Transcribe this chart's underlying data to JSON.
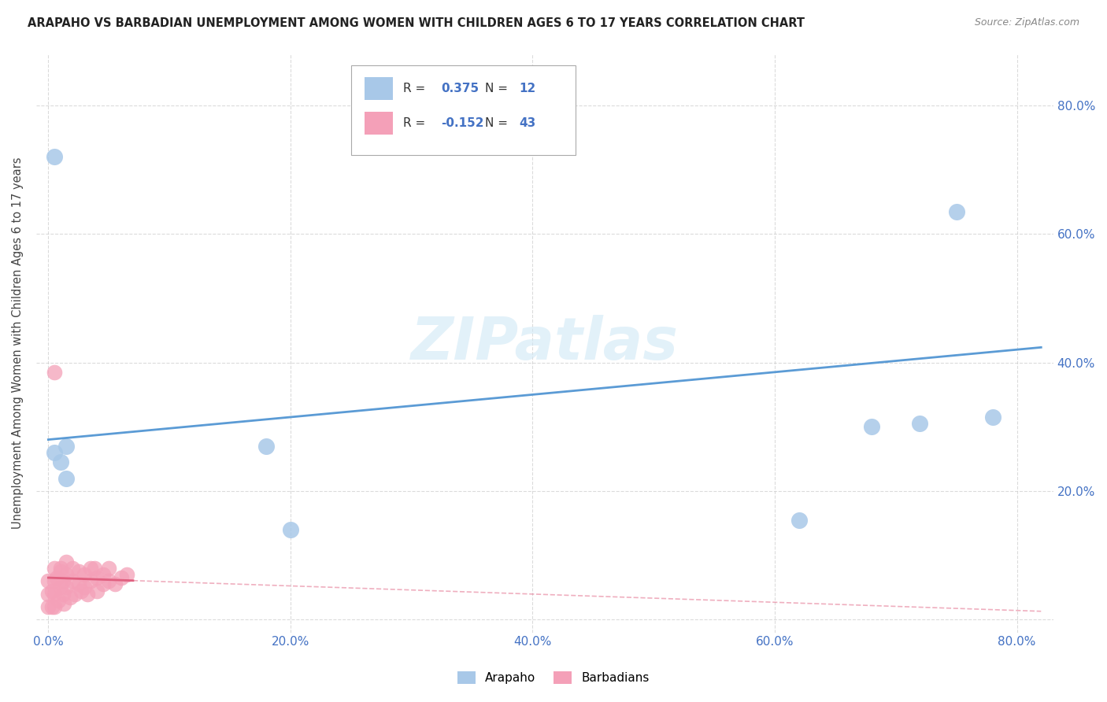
{
  "title": "ARAPAHO VS BARBADIAN UNEMPLOYMENT AMONG WOMEN WITH CHILDREN AGES 6 TO 17 YEARS CORRELATION CHART",
  "source": "Source: ZipAtlas.com",
  "ylabel": "Unemployment Among Women with Children Ages 6 to 17 years",
  "arapaho_R": 0.375,
  "arapaho_N": 12,
  "barbadian_R": -0.152,
  "barbadian_N": 43,
  "arapaho_color": "#a8c8e8",
  "barbadian_color": "#f4a0b8",
  "arapaho_line_color": "#5b9bd5",
  "barbadian_line_color": "#e06080",
  "watermark_color": "#d0e8f5",
  "background_color": "#ffffff",
  "grid_color": "#cccccc",
  "tick_color": "#4472c4",
  "arapaho_x": [
    0.5,
    0.5,
    1.0,
    1.5,
    1.5,
    18.0,
    62.0,
    68.0,
    72.0,
    75.0,
    78.0,
    20.0
  ],
  "arapaho_y": [
    72.0,
    26.0,
    24.5,
    27.0,
    22.0,
    27.0,
    15.5,
    30.0,
    30.5,
    63.5,
    31.5,
    14.0
  ],
  "barbadian_x": [
    0.0,
    0.0,
    0.0,
    0.5,
    0.5,
    0.5,
    0.5,
    0.8,
    1.0,
    1.0,
    1.2,
    1.2,
    1.3,
    1.5,
    1.5,
    1.5,
    2.0,
    2.0,
    2.5,
    2.5,
    3.0,
    3.0,
    3.5,
    3.5,
    4.0,
    4.0,
    4.5,
    4.5,
    5.0,
    5.0,
    5.5,
    6.0,
    6.5,
    0.3,
    0.3,
    0.7,
    1.0,
    1.8,
    2.2,
    2.7,
    3.2,
    3.8,
    0.5
  ],
  "barbadian_y": [
    4.0,
    6.0,
    2.0,
    4.0,
    6.0,
    2.0,
    8.0,
    3.0,
    5.0,
    8.0,
    4.0,
    6.0,
    2.5,
    5.0,
    7.0,
    9.0,
    6.0,
    8.0,
    5.5,
    7.5,
    5.0,
    7.0,
    6.0,
    8.0,
    4.5,
    6.5,
    5.5,
    7.0,
    6.0,
    8.0,
    5.5,
    6.5,
    7.0,
    2.0,
    4.5,
    6.5,
    7.5,
    3.5,
    4.0,
    4.5,
    4.0,
    8.0,
    38.5
  ]
}
